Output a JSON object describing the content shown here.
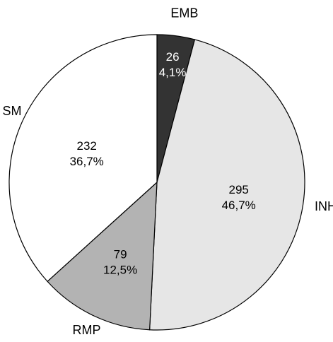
{
  "chart_data": {
    "type": "pie",
    "title": "",
    "slices": [
      {
        "category": "EMB",
        "value": 26,
        "percent_label": "4,1%",
        "color": "#333333"
      },
      {
        "category": "INH",
        "value": 295,
        "percent_label": "46,7%",
        "color": "#e6e6e6"
      },
      {
        "category": "RMP",
        "value": 79,
        "percent_label": "12,5%",
        "color": "#b3b3b3"
      },
      {
        "category": "SM",
        "value": 232,
        "percent_label": "36,7%",
        "color": "#ffffff"
      }
    ],
    "start_angle_deg": 0,
    "direction": "clockwise",
    "legend": "none"
  }
}
